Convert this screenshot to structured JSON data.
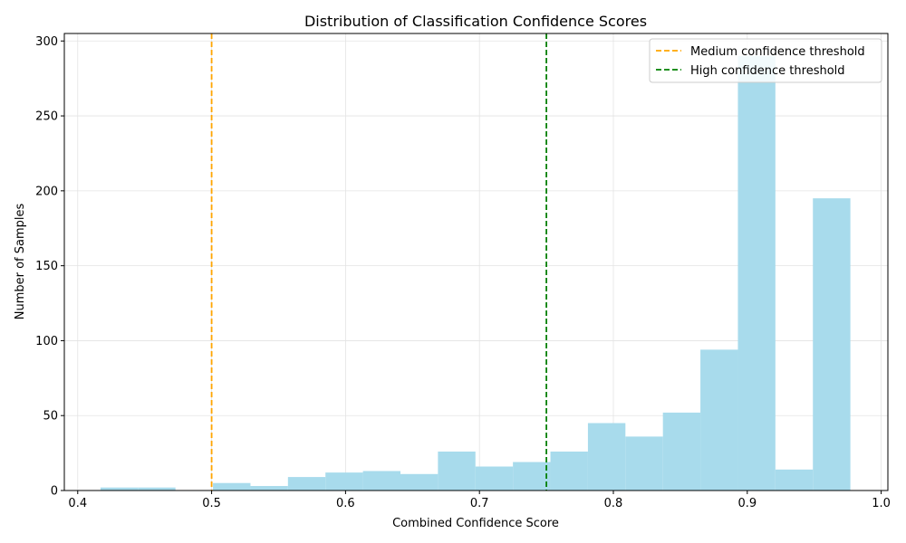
{
  "chart_data": {
    "type": "bar",
    "title": "Distribution of Classification Confidence Scores",
    "xlabel": "Combined Confidence Score",
    "ylabel": "Number of Samples",
    "xlim": [
      0.39,
      1.005
    ],
    "ylim": [
      0,
      305
    ],
    "x_ticks": [
      0.4,
      0.5,
      0.6,
      0.7,
      0.8,
      0.9,
      1.0
    ],
    "x_tick_labels": [
      "0.4",
      "0.5",
      "0.6",
      "0.7",
      "0.8",
      "0.9",
      "1.0"
    ],
    "y_ticks": [
      0,
      50,
      100,
      150,
      200,
      250,
      300
    ],
    "y_tick_labels": [
      "0",
      "50",
      "100",
      "150",
      "200",
      "250",
      "300"
    ],
    "grid": true,
    "bar_color": "#a8dbec",
    "bins": [
      {
        "x0": 0.417,
        "x1": 0.445,
        "count": 2
      },
      {
        "x0": 0.445,
        "x1": 0.473,
        "count": 2
      },
      {
        "x0": 0.473,
        "x1": 0.501,
        "count": 0
      },
      {
        "x0": 0.501,
        "x1": 0.529,
        "count": 5
      },
      {
        "x0": 0.529,
        "x1": 0.557,
        "count": 3
      },
      {
        "x0": 0.557,
        "x1": 0.585,
        "count": 9
      },
      {
        "x0": 0.585,
        "x1": 0.613,
        "count": 12
      },
      {
        "x0": 0.613,
        "x1": 0.641,
        "count": 13
      },
      {
        "x0": 0.641,
        "x1": 0.669,
        "count": 11
      },
      {
        "x0": 0.669,
        "x1": 0.697,
        "count": 26
      },
      {
        "x0": 0.697,
        "x1": 0.725,
        "count": 16
      },
      {
        "x0": 0.725,
        "x1": 0.753,
        "count": 19
      },
      {
        "x0": 0.753,
        "x1": 0.781,
        "count": 26
      },
      {
        "x0": 0.781,
        "x1": 0.809,
        "count": 45
      },
      {
        "x0": 0.809,
        "x1": 0.837,
        "count": 36
      },
      {
        "x0": 0.837,
        "x1": 0.865,
        "count": 52
      },
      {
        "x0": 0.865,
        "x1": 0.893,
        "count": 94
      },
      {
        "x0": 0.893,
        "x1": 0.921,
        "count": 290
      },
      {
        "x0": 0.921,
        "x1": 0.949,
        "count": 14
      },
      {
        "x0": 0.949,
        "x1": 0.977,
        "count": 195
      }
    ],
    "thresholds": [
      {
        "name": "Medium confidence threshold",
        "x": 0.5,
        "color": "#ffa500"
      },
      {
        "name": "High confidence threshold",
        "x": 0.75,
        "color": "#008000"
      }
    ],
    "legend_position": "top-right"
  }
}
